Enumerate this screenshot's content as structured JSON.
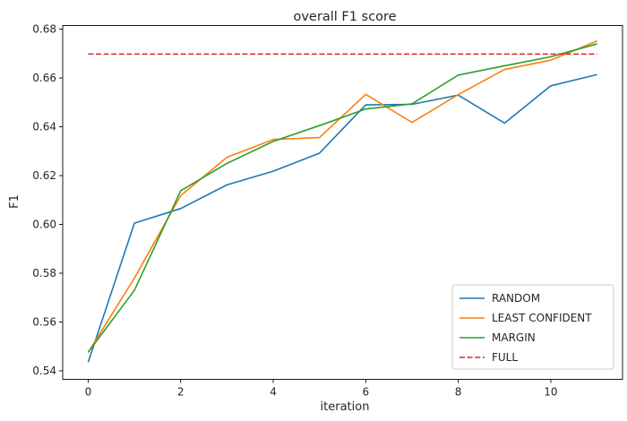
{
  "chart_data": {
    "type": "line",
    "title": "overall F1 score",
    "xlabel": "iteration",
    "ylabel": "F1",
    "xlim": [
      -0.55,
      11.55
    ],
    "ylim": [
      0.5365,
      0.6815
    ],
    "xticks": [
      0,
      2,
      4,
      6,
      8,
      10
    ],
    "yticks": [
      0.54,
      0.56,
      0.58,
      0.6,
      0.62,
      0.64,
      0.66,
      0.68
    ],
    "ytick_labels": [
      "0.54",
      "0.56",
      "0.58",
      "0.60",
      "0.62",
      "0.64",
      "0.66",
      "0.68"
    ],
    "grid": false,
    "legend_position": "bottom-right",
    "x": [
      0,
      1,
      2,
      3,
      4,
      5,
      6,
      7,
      8,
      9,
      10,
      11
    ],
    "series": [
      {
        "name": "RANDOM",
        "color": "#1f77b4",
        "style": "solid",
        "values": [
          0.5435,
          0.6005,
          0.6065,
          0.6162,
          0.6218,
          0.6292,
          0.649,
          0.6492,
          0.653,
          0.6415,
          0.6568,
          0.6614
        ]
      },
      {
        "name": "LEAST CONFIDENT",
        "color": "#ff7f0e",
        "style": "solid",
        "values": [
          0.5475,
          0.578,
          0.6118,
          0.6275,
          0.6348,
          0.6356,
          0.6533,
          0.6418,
          0.6532,
          0.6635,
          0.6673,
          0.6752
        ]
      },
      {
        "name": "MARGIN",
        "color": "#2ca02c",
        "style": "solid",
        "values": [
          0.5476,
          0.573,
          0.6138,
          0.625,
          0.634,
          0.6405,
          0.6473,
          0.6494,
          0.6612,
          0.665,
          0.6687,
          0.674
        ]
      },
      {
        "name": "FULL",
        "color": "#d62728",
        "style": "dashed",
        "values": [
          0.6698,
          0.6698,
          0.6698,
          0.6698,
          0.6698,
          0.6698,
          0.6698,
          0.6698,
          0.6698,
          0.6698,
          0.6698,
          0.6698
        ]
      }
    ]
  }
}
